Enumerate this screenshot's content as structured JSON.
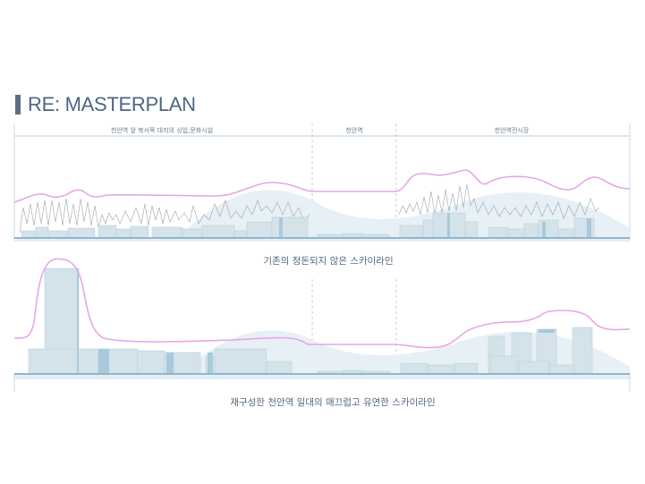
{
  "header": {
    "title": "RE: MASTERPLAN"
  },
  "zones": [
    {
      "label": "천안역 앞 북서쪽 대지의 상업,문화시설"
    },
    {
      "label": "천안역"
    },
    {
      "label": "천안역전시장"
    }
  ],
  "captions": {
    "existing": "기존의 정돈되지 않은 스카이라인",
    "proposed": "재구성한 천안역 일대의 매끄럽고 유연한 스카이라인"
  },
  "colors": {
    "accent_bar": "#5a6f86",
    "skyline_line": "#e6a6e6",
    "building_fill": "#d4e3ea",
    "building_dark": "#a9c9dc",
    "ground": "#9cc0d6",
    "mountain": "#e7f0f5"
  }
}
